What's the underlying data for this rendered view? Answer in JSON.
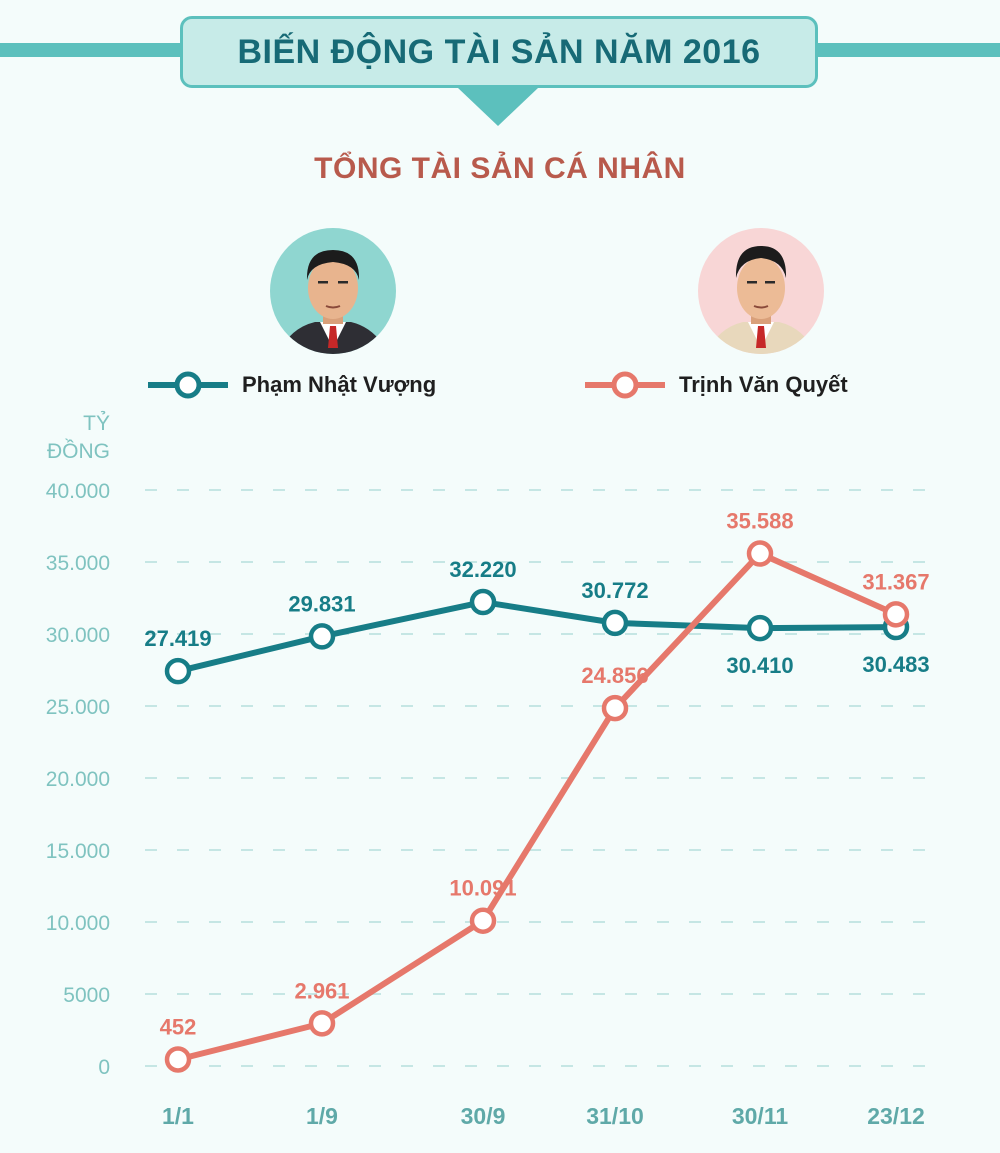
{
  "header": {
    "title": "BIẾN ĐỘNG TÀI SẢN NĂM 2016",
    "subtitle": "TỔNG TÀI SẢN CÁ NHÂN"
  },
  "colors": {
    "teal": "#177d87",
    "coral": "#e6786b",
    "axis_label": "#7fc3c0",
    "x_label": "#5fa9a8"
  },
  "chart_data": {
    "type": "line",
    "title": "TỔNG TÀI SẢN CÁ NHÂN",
    "ylabel_line1": "TỶ",
    "ylabel_line2": "ĐỒNG",
    "categories": [
      "1/1",
      "1/9",
      "30/9",
      "31/10",
      "30/11",
      "23/12"
    ],
    "ylim": [
      0,
      40000
    ],
    "yticks": [
      0,
      5000,
      10000,
      15000,
      20000,
      25000,
      30000,
      35000,
      40000
    ],
    "ytick_labels": [
      "0",
      "5000",
      "10.000",
      "15.000",
      "20.000",
      "25.000",
      "30.000",
      "35.000",
      "40.000"
    ],
    "grid": true,
    "legend_position": "top",
    "series": [
      {
        "name": "Phạm Nhật Vượng",
        "color": "#177d87",
        "values": [
          27419,
          29831,
          32220,
          30772,
          30410,
          30483
        ],
        "labels": [
          "27.419",
          "29.831",
          "32.220",
          "30.772",
          "30.410",
          "30.483"
        ],
        "label_pos": [
          "above",
          "above",
          "above",
          "above",
          "below",
          "below"
        ]
      },
      {
        "name": "Trịnh Văn Quyết",
        "color": "#e6786b",
        "values": [
          452,
          2961,
          10091,
          24856,
          35588,
          31367
        ],
        "labels": [
          "452",
          "2.961",
          "10.091",
          "24.856",
          "35.588",
          "31.367"
        ],
        "label_pos": [
          "above",
          "above",
          "above",
          "above",
          "above",
          "above"
        ]
      }
    ]
  }
}
